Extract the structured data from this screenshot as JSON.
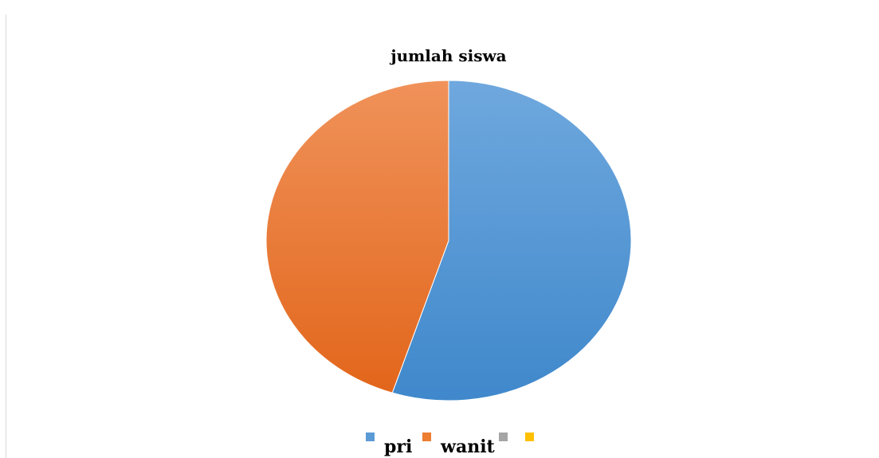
{
  "chart_data": {
    "type": "pie",
    "title": "jumlah siswa",
    "categories": [
      "pri",
      "wanit",
      "",
      ""
    ],
    "values": [
      55,
      45,
      0,
      0
    ],
    "colors": [
      "#5b9bd5",
      "#ed7d31",
      "#a5a5a5",
      "#ffc000"
    ],
    "legend": "bottom"
  }
}
